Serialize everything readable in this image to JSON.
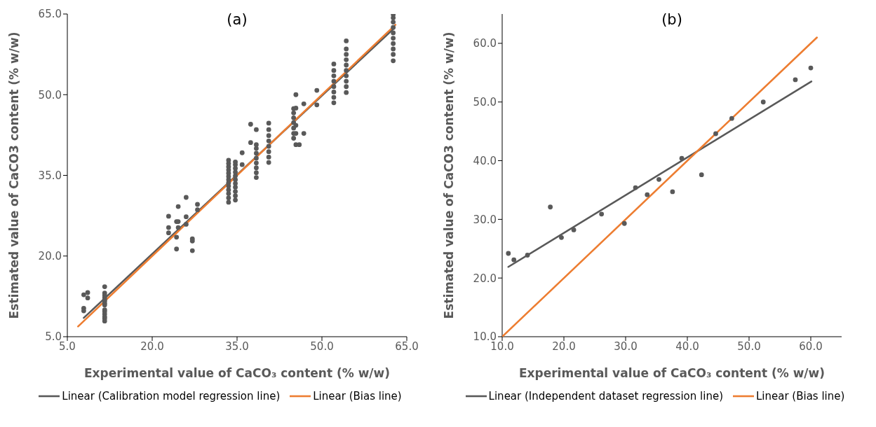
{
  "chart_data": [
    {
      "type": "scatter",
      "title": "(a)",
      "xlabel": "Experimental value of CaCO₃ content (% w/w)",
      "ylabel": "Estimated value of CaCO3 content (% w/w)",
      "xlim": [
        5,
        65
      ],
      "ylim": [
        5,
        65
      ],
      "xticks": [
        {
          "value": 5,
          "label": "5.0"
        },
        {
          "value": 20,
          "label": "20.0"
        },
        {
          "value": 35,
          "label": "35.0"
        },
        {
          "value": 50,
          "label": "50.0"
        },
        {
          "value": 65,
          "label": "65.0"
        }
      ],
      "yticks": [
        {
          "value": 5,
          "label": "5.0"
        },
        {
          "value": 20,
          "label": "20.0"
        },
        {
          "value": 35,
          "label": "35.0"
        },
        {
          "value": 50,
          "label": "50.0"
        },
        {
          "value": 65,
          "label": "65.0"
        }
      ],
      "legend": "bottom",
      "series": [
        {
          "marker": "circle",
          "color": "#595959",
          "x": [
            7.9,
            7.9,
            7.9,
            8.6,
            8.6,
            11.6,
            11.6,
            11.6,
            11.6,
            11.6,
            11.6,
            11.6,
            11.6,
            11.6,
            11.6,
            11.6,
            11.6,
            11.6,
            11.6,
            22.9,
            22.9,
            22.9,
            24.3,
            24.3,
            24.3,
            24.6,
            24.6,
            24.6,
            26,
            26,
            26,
            27.1,
            27.1,
            27.1,
            28,
            28,
            33.5,
            33.5,
            33.5,
            33.5,
            33.5,
            33.5,
            33.5,
            33.5,
            33.5,
            33.5,
            33.5,
            33.5,
            33.5,
            34.7,
            34.7,
            34.7,
            34.7,
            34.7,
            34.7,
            34.7,
            34.7,
            34.7,
            34.7,
            34.7,
            35.9,
            35.9,
            37.4,
            37.4,
            38.4,
            38.4,
            38.4,
            38.4,
            38.4,
            38.4,
            38.4,
            38.4,
            38.4,
            40.6,
            40.6,
            40.6,
            40.6,
            40.6,
            40.6,
            40.6,
            40.6,
            45,
            45,
            45,
            45,
            45,
            45,
            45,
            45.4,
            45.4,
            45.4,
            45.4,
            45.4,
            46,
            46.8,
            46.8,
            49.1,
            49.1,
            52.1,
            52.1,
            52.1,
            52.1,
            52.1,
            52.1,
            52.1,
            52.1,
            54.3,
            54.3,
            54.3,
            54.3,
            54.3,
            54.3,
            54.3,
            54.3,
            54.3,
            54.3,
            62.6,
            62.6,
            62.6,
            62.6,
            62.6,
            62.6,
            62.6,
            62.6,
            62.6,
            62.6
          ],
          "values": [
            12.8,
            10.3,
            9.8,
            13.2,
            12.2,
            14.3,
            13.1,
            12.7,
            12.3,
            11.9,
            11.6,
            11.2,
            10.9,
            10,
            9.7,
            9.2,
            8.7,
            8.4,
            7.9,
            27.4,
            25.3,
            24.3,
            26.4,
            23.5,
            21.3,
            29.2,
            26.4,
            25.3,
            30.9,
            27.3,
            25.9,
            23.2,
            22.8,
            21,
            29.6,
            28.6,
            30,
            30.8,
            31.6,
            32.3,
            33,
            33.6,
            34.2,
            34.8,
            35.4,
            36,
            36.6,
            37.2,
            37.8,
            30.4,
            31.2,
            32,
            32.8,
            33.5,
            34.2,
            34.9,
            35.6,
            36.3,
            37,
            37.5,
            37,
            39.2,
            41.1,
            44.5,
            34.6,
            35.5,
            36.4,
            37.3,
            38.2,
            39.1,
            40,
            40.7,
            43.5,
            37.4,
            38.4,
            39.4,
            40.4,
            41.4,
            42.4,
            43.5,
            44.7,
            41.9,
            42.8,
            43.8,
            44.8,
            45.7,
            46.6,
            47.4,
            50,
            47.5,
            44.3,
            42.8,
            40.7,
            40.7,
            42.8,
            48.3,
            50.8,
            48.1,
            48.5,
            49.5,
            50.5,
            51.5,
            52.5,
            53.5,
            54.5,
            55.7,
            50.4,
            51.5,
            52.5,
            53.5,
            54.5,
            55.5,
            56.5,
            57.5,
            58.5,
            60,
            56.3,
            57.5,
            58.5,
            59.5,
            60.5,
            61.5,
            62.5,
            63.5,
            64.3,
            64.9
          ]
        },
        {
          "type": "line",
          "marker": "none",
          "name": "Linear (Calibration model regression line)",
          "color": "#595959",
          "x": [
            7.9,
            62.6
          ],
          "values": [
            8.5,
            62.2
          ]
        },
        {
          "type": "line",
          "marker": "none",
          "name": "Linear (Bias line)",
          "color": "#ed7d31",
          "x": [
            6.9,
            63
          ],
          "values": [
            6.9,
            63
          ]
        }
      ]
    },
    {
      "type": "scatter",
      "title": "(b)",
      "xlabel": "Experimental value of CaCO₃ content (% w/w)",
      "ylabel": "Estimated value of CaCO3 content (% w/w)",
      "xlim": [
        10,
        65
      ],
      "ylim": [
        10,
        65
      ],
      "xticks": [
        {
          "value": 10,
          "label": "10.0"
        },
        {
          "value": 20,
          "label": "20.0"
        },
        {
          "value": 30,
          "label": "30.0"
        },
        {
          "value": 40,
          "label": "40.0"
        },
        {
          "value": 50,
          "label": "50.0"
        },
        {
          "value": 60,
          "label": "60.0"
        }
      ],
      "yticks": [
        {
          "value": 10,
          "label": "10.0"
        },
        {
          "value": 20,
          "label": "20.0"
        },
        {
          "value": 30,
          "label": "30.0"
        },
        {
          "value": 40,
          "label": "40.0"
        },
        {
          "value": 50,
          "label": "50.0"
        },
        {
          "value": 60,
          "label": "60.0"
        }
      ],
      "legend": "bottom",
      "series": [
        {
          "marker": "circle",
          "color": "#595959",
          "x": [
            11,
            11.9,
            14.1,
            17.8,
            19.6,
            21.6,
            26.1,
            29.8,
            31.6,
            33.5,
            35.4,
            37.6,
            39.1,
            42.3,
            44.6,
            47.2,
            52.3,
            57.5,
            60
          ],
          "values": [
            24.2,
            23.1,
            23.9,
            32.1,
            26.9,
            28.2,
            30.9,
            29.3,
            35.4,
            34.2,
            36.8,
            34.7,
            40.4,
            37.6,
            44.6,
            47.2,
            50,
            53.8,
            55.8
          ]
        },
        {
          "type": "line",
          "marker": "none",
          "name": "Linear (Independent dataset regression line)",
          "color": "#595959",
          "x": [
            11,
            60.1
          ],
          "values": [
            21.9,
            53.5
          ]
        },
        {
          "type": "line",
          "marker": "none",
          "name": "Linear (Bias line)",
          "color": "#ed7d31",
          "x": [
            10,
            61
          ],
          "values": [
            10,
            61
          ]
        }
      ]
    }
  ]
}
